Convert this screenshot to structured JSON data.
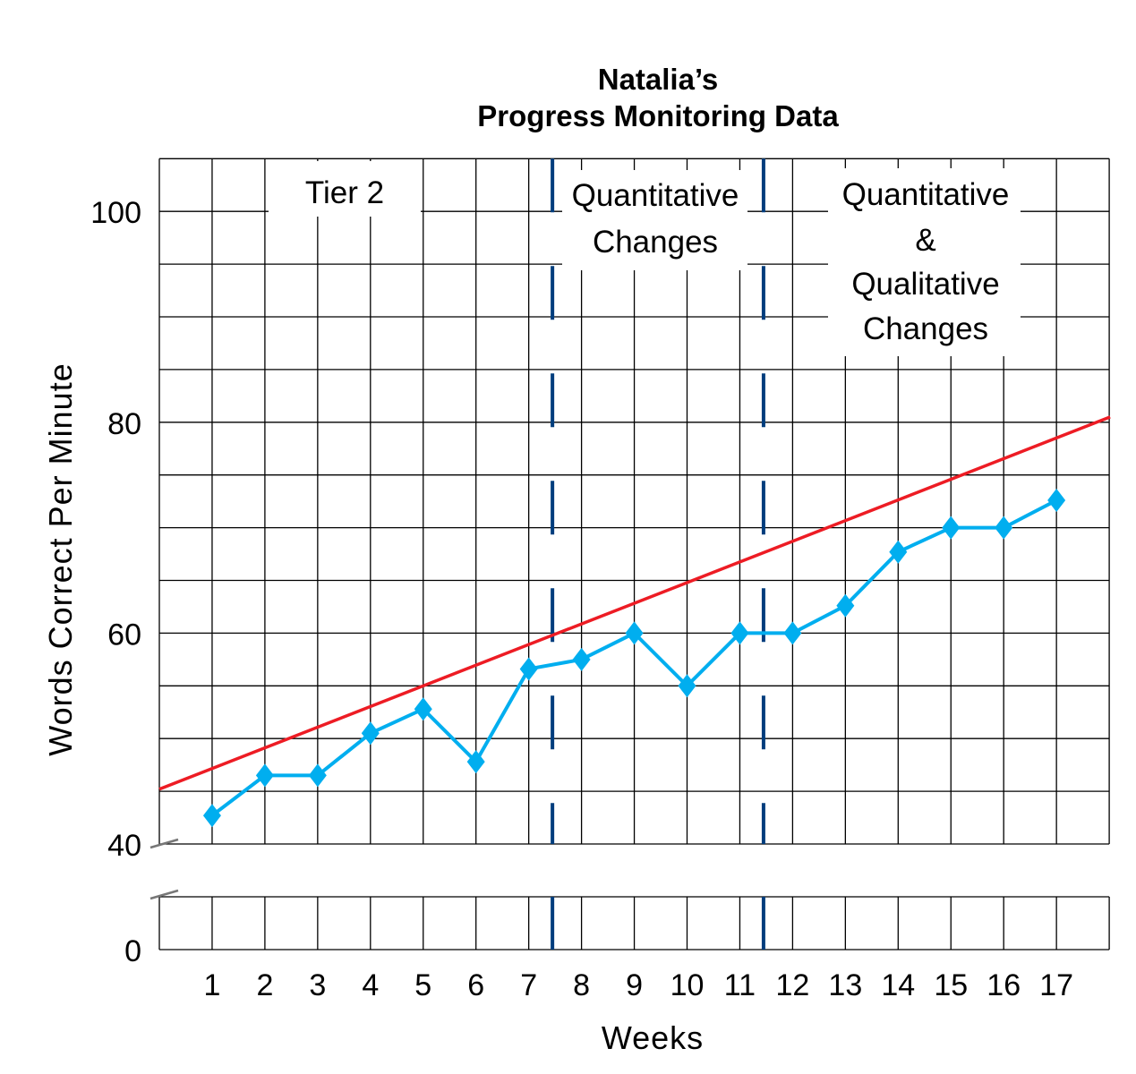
{
  "chart_data": {
    "type": "line",
    "title_line1": "Natalia’s",
    "title_line2": "Progress Monitoring Data",
    "xlabel": "Weeks",
    "ylabel": "Words Correct Per Minute",
    "x": [
      1,
      2,
      3,
      4,
      5,
      6,
      7,
      8,
      9,
      10,
      11,
      12,
      13,
      14,
      15,
      16,
      17
    ],
    "x_tick_labels": [
      "1",
      "2",
      "3",
      "4",
      "5",
      "6",
      "7",
      "8",
      "9",
      "10",
      "11",
      "12",
      "13",
      "14",
      "15",
      "16",
      "17"
    ],
    "y_tick_labels": [
      "100",
      "80",
      "60",
      "40",
      "0"
    ],
    "y_ticks": [
      100,
      80,
      60,
      40
    ],
    "ylim": [
      40,
      105
    ],
    "xlim": [
      0,
      18
    ],
    "axis_break": "between 0 and 40",
    "grid": true,
    "series": [
      {
        "name": "Words Correct Per Minute",
        "color": "#00aeef",
        "marker": "diamond",
        "values": [
          42.7,
          46.5,
          46.5,
          50.5,
          52.8,
          47.8,
          56.6,
          57.5,
          60,
          55,
          60,
          60,
          62.6,
          67.7,
          70,
          70,
          72.6
        ]
      }
    ],
    "aimline": {
      "name": "Aimline",
      "color": "#ed1c24",
      "start": {
        "week": 0,
        "value": 45.2
      },
      "end": {
        "week": 18,
        "value": 80.5
      }
    },
    "phase_lines": [
      {
        "week": 7.5,
        "color": "#003d7d"
      },
      {
        "week": 11.5,
        "color": "#003d7d"
      }
    ],
    "phase_labels": [
      {
        "lines": [
          "Tier 2"
        ]
      },
      {
        "lines": [
          "Quantitative",
          "Changes"
        ]
      },
      {
        "lines": [
          "Quantitative",
          "&",
          "Qualitative",
          "Changes"
        ]
      }
    ]
  }
}
